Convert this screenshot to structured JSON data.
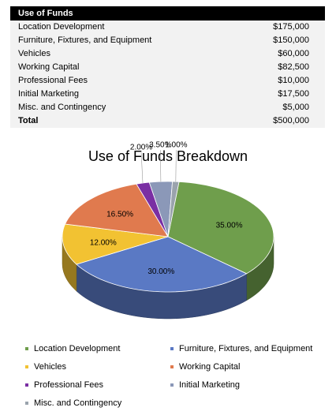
{
  "table": {
    "header": "Use of Funds",
    "rows": [
      {
        "label": "Location Development",
        "amount": "$175,000"
      },
      {
        "label": "Furniture, Fixtures, and Equipment",
        "amount": "$150,000"
      },
      {
        "label": "Vehicles",
        "amount": "$60,000"
      },
      {
        "label": "Working Capital",
        "amount": "$82,500"
      },
      {
        "label": "Professional Fees",
        "amount": "$10,000"
      },
      {
        "label": "Initial Marketing",
        "amount": "$17,500"
      },
      {
        "label": "Misc. and Contingency",
        "amount": "$5,000"
      }
    ],
    "total_label": "Total",
    "total_amount": "$500,000"
  },
  "chart_data": {
    "type": "pie",
    "title": "Use of Funds Breakdown",
    "categories": [
      "Location Development",
      "Furniture, Fixtures, and Equipment",
      "Vehicles",
      "Working Capital",
      "Professional Fees",
      "Initial Marketing",
      "Misc. and Contingency"
    ],
    "values": [
      35.0,
      30.0,
      12.0,
      16.5,
      2.0,
      3.5,
      1.0
    ],
    "labels": [
      "35.00%",
      "30.00%",
      "12.00%",
      "16.50%",
      "2.00%",
      "3.50%",
      "1.00%"
    ],
    "colors": [
      "#6f9e4c",
      "#5a79c4",
      "#f2c232",
      "#e07a4e",
      "#7a2fa3",
      "#8b98b8",
      "#9aa3ad"
    ],
    "legend_position": "bottom",
    "style": "3d"
  }
}
